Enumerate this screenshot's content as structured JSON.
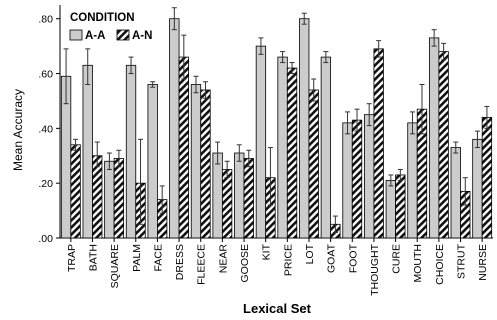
{
  "chart_data": {
    "type": "bar",
    "xlabel": "Lexical Set",
    "ylabel": "Mean Accuracy",
    "ylim": [
      0,
      0.85
    ],
    "yticks": [
      0,
      0.2,
      0.4,
      0.6,
      0.8
    ],
    "ytick_labels": [
      ".00",
      ".20",
      ".40",
      ".60",
      ".80"
    ],
    "grid": false,
    "error_bars": true,
    "legend": {
      "title": "CONDITION",
      "placement": "top-left",
      "entries": [
        "A-A",
        "A-N"
      ]
    },
    "categories": [
      "TRAP",
      "BATH",
      "SQUARE",
      "PALM",
      "FACE",
      "DRESS",
      "FLEECE",
      "NEAR",
      "GOOSE",
      "KIT",
      "PRICE",
      "LOT",
      "GOAT",
      "FOOT",
      "THOUGHT",
      "CURE",
      "MOUTH",
      "CHOICE",
      "STRUT",
      "NURSE"
    ],
    "series": [
      {
        "name": "A-A",
        "fill": "#cccccc",
        "pattern": "solid",
        "values": [
          0.59,
          0.63,
          0.28,
          0.63,
          0.56,
          0.8,
          0.56,
          0.31,
          0.31,
          0.7,
          0.66,
          0.8,
          0.66,
          0.42,
          0.45,
          0.21,
          0.42,
          0.73,
          0.33,
          0.36
        ],
        "err_low": [
          0.49,
          0.56,
          0.25,
          0.6,
          0.55,
          0.76,
          0.53,
          0.27,
          0.28,
          0.67,
          0.64,
          0.78,
          0.64,
          0.38,
          0.41,
          0.19,
          0.38,
          0.7,
          0.31,
          0.33
        ],
        "err_high": [
          0.69,
          0.69,
          0.31,
          0.66,
          0.57,
          0.84,
          0.59,
          0.35,
          0.34,
          0.73,
          0.68,
          0.82,
          0.68,
          0.46,
          0.49,
          0.23,
          0.46,
          0.76,
          0.35,
          0.39
        ]
      },
      {
        "name": "A-N",
        "fill": "#111111",
        "pattern": "diagonal-hatch",
        "values": [
          0.34,
          0.3,
          0.29,
          0.2,
          0.14,
          0.66,
          0.54,
          0.25,
          0.29,
          0.22,
          0.62,
          0.54,
          0.05,
          0.43,
          0.69,
          0.23,
          0.47,
          0.68,
          0.17,
          0.44
        ],
        "err_low": [
          0.32,
          0.26,
          0.26,
          0.05,
          0.09,
          0.58,
          0.51,
          0.22,
          0.26,
          0.12,
          0.6,
          0.5,
          0.02,
          0.39,
          0.66,
          0.21,
          0.38,
          0.65,
          0.12,
          0.4
        ],
        "err_high": [
          0.36,
          0.35,
          0.32,
          0.36,
          0.19,
          0.74,
          0.57,
          0.28,
          0.32,
          0.33,
          0.64,
          0.58,
          0.08,
          0.47,
          0.72,
          0.25,
          0.56,
          0.71,
          0.22,
          0.48
        ]
      }
    ]
  }
}
